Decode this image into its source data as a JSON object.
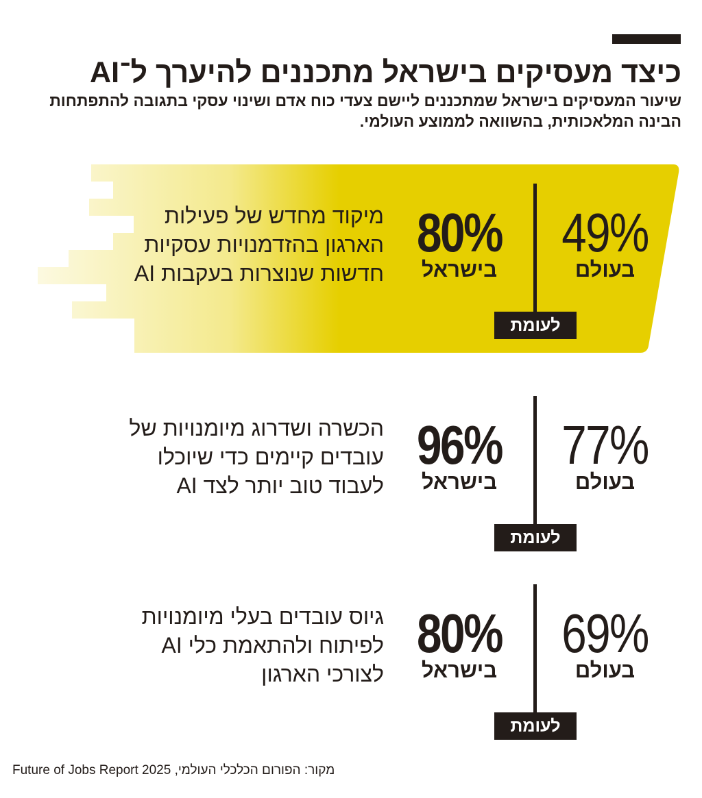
{
  "title": "כיצד מעסיקים בישראל מתכננים להיערך ל־AI",
  "subtitle": "שיעור המעסיקים בישראל שמתכננים ליישם צעדי כוח אדם ושינוי עסקי בתגובה להתפתחות הבינה המלאכותית, בהשוואה לממוצע העולמי.",
  "colors": {
    "highlight": "#e6cf00",
    "dark": "#231c19"
  },
  "chart_data": {
    "type": "table",
    "title": "כיצד מעסיקים בישראל מתכננים להיערך ל־AI",
    "columns": [
      "ישראל",
      "עולם"
    ],
    "rows": [
      {
        "description": [
          "מיקוד מחדש של פעילות",
          "הארגון בהזדמנויות עסקיות",
          "חדשות שנוצרות בעקבות AI"
        ],
        "israel": 80,
        "israel_text": "80%",
        "israel_label": "בישראל",
        "world": 49,
        "world_text": "49%",
        "world_label": "בעולם",
        "versus": "לעומת",
        "highlighted": true
      },
      {
        "description": [
          "הכשרה ושדרוג מיומנויות של",
          "עובדים קיימים כדי שיוכלו",
          "לעבוד טוב יותר לצד AI"
        ],
        "israel": 96,
        "israel_text": "96%",
        "israel_label": "בישראל",
        "world": 77,
        "world_text": "77%",
        "world_label": "בעולם",
        "versus": "לעומת",
        "highlighted": false
      },
      {
        "description": [
          "גיוס עובדים בעלי מיומנויות",
          "לפיתוח ולהתאמת כלי AI",
          "לצורכי הארגון"
        ],
        "israel": 80,
        "israel_text": "80%",
        "israel_label": "בישראל",
        "world": 69,
        "world_text": "69%",
        "world_label": "בעולם",
        "versus": "לעומת",
        "highlighted": false
      }
    ]
  },
  "source": "מקור: הפורום הכלכלי העולמי, Future of Jobs Report 2025"
}
